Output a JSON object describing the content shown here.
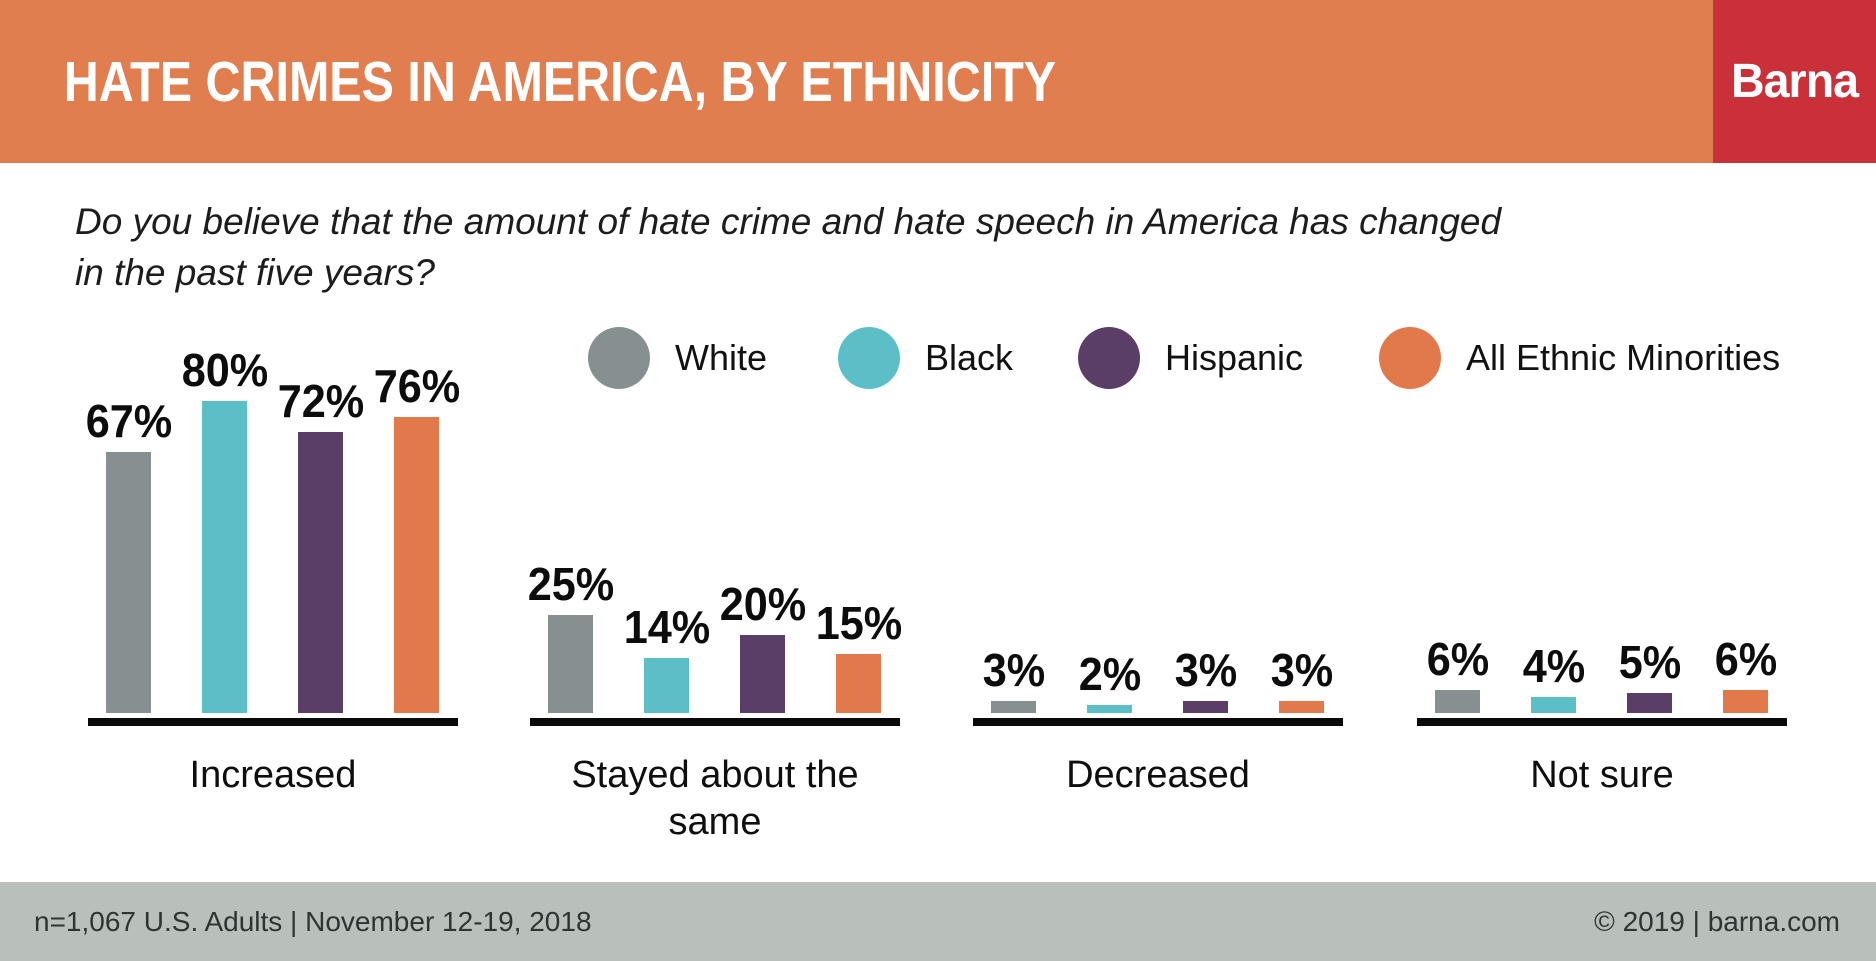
{
  "header": {
    "title": "HATE CRIMES IN AMERICA, BY ETHNICITY",
    "logo": "Barna",
    "bg_color": "#E17E50",
    "logo_bg_color": "#C9303A"
  },
  "question": {
    "line1": "Do you believe that the amount of hate crime and hate speech in America has changed",
    "line2": "in the past five years?"
  },
  "chart_data": {
    "type": "bar",
    "title": "HATE CRIMES IN AMERICA, BY ETHNICITY",
    "subtitle": "Do you believe that the amount of hate crime and hate speech in America has changed in the past five years?",
    "unit": "%",
    "value_label_suffix": "%",
    "legend_position": "top",
    "value_axis_visible": false,
    "ylim": [
      0,
      100
    ],
    "categories": [
      "Increased",
      "Stayed about the same",
      "Decreased",
      "Not sure"
    ],
    "series": [
      {
        "name": "White",
        "color": "#869090",
        "values": [
          67,
          25,
          3,
          6
        ]
      },
      {
        "name": "Black",
        "color": "#5CBEC6",
        "values": [
          80,
          14,
          2,
          4
        ]
      },
      {
        "name": "Hispanic",
        "color": "#5B3E67",
        "values": [
          72,
          20,
          3,
          5
        ]
      },
      {
        "name": "All Ethnic Minorities",
        "color": "#E2794B",
        "values": [
          76,
          15,
          3,
          6
        ]
      }
    ]
  },
  "footer": {
    "left": "n=1,067 U.S. Adults | November 12-19, 2018",
    "right": "© 2019 | barna.com",
    "bg_color": "#B9BFBB"
  }
}
